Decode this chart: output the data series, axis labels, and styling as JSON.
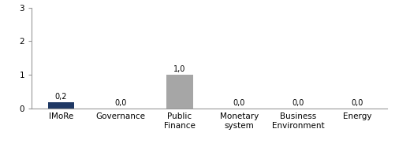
{
  "categories": [
    "IMoRe",
    "Governance",
    "Public\nFinance",
    "Monetary\nsystem",
    "Business\nEnvironment",
    "Energy"
  ],
  "values": [
    0.2,
    0.0,
    1.0,
    0.0,
    0.0,
    0.0
  ],
  "bar_colors": [
    "#1f3864",
    "#a6a6a6",
    "#a6a6a6",
    "#a6a6a6",
    "#a6a6a6",
    "#a6a6a6"
  ],
  "labels": [
    "0,2",
    "0,0",
    "1,0",
    "0,0",
    "0,0",
    "0,0"
  ],
  "ylim": [
    0,
    3
  ],
  "yticks": [
    0,
    1,
    2,
    3
  ],
  "background_color": "#ffffff",
  "bar_width": 0.45,
  "label_fontsize": 7,
  "tick_fontsize": 7.5,
  "axis_color": "#999999"
}
